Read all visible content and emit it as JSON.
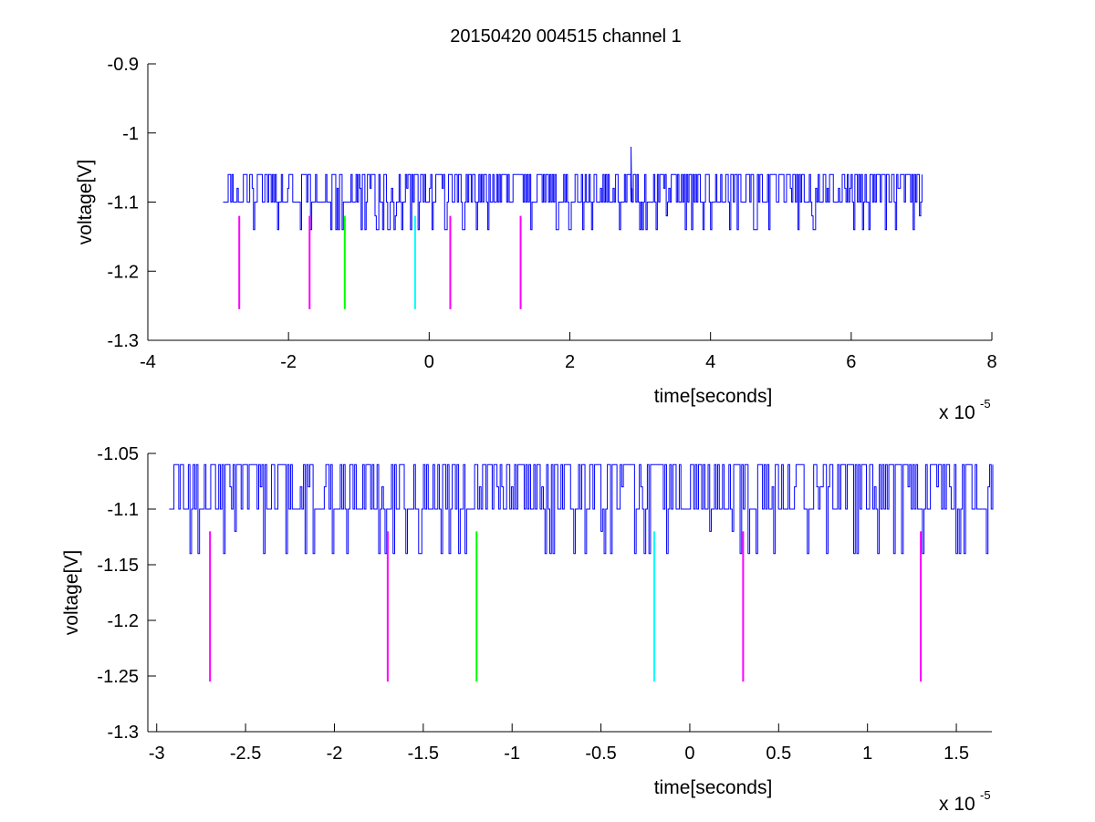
{
  "figure": {
    "title": "20150420 004515 channel 1"
  },
  "chart_data": [
    {
      "type": "line",
      "title": "20150420 004515 channel 1",
      "xlabel": "time[seconds]",
      "ylabel": "voltage[V]",
      "x_exponent_base": "x 10",
      "x_exponent_power": "-5",
      "xlim": [
        -4,
        8
      ],
      "ylim": [
        -1.3,
        -0.9
      ],
      "x_ticks": [
        -4,
        -2,
        0,
        2,
        4,
        6,
        8
      ],
      "x_tick_labels": [
        "-4",
        "-2",
        "0",
        "2",
        "4",
        "6",
        "8"
      ],
      "y_ticks": [
        -1.3,
        -1.2,
        -1.1,
        -1.0,
        -0.9
      ],
      "y_tick_labels": [
        "-1.3",
        "-1.2",
        "-1.1",
        "-1",
        "-0.9"
      ],
      "grid": false,
      "signal": {
        "color": "#0000ff",
        "x_start": -2.93,
        "x_end": 7.0,
        "baseline": -1.1,
        "high_level": -1.06,
        "low_level": -1.14,
        "spike": {
          "x": 2.87,
          "y": -1.02
        }
      },
      "markers": [
        {
          "x": -2.7,
          "y_top": -1.12,
          "y_bottom": -1.255,
          "color": "#ff00ff"
        },
        {
          "x": -1.7,
          "y_top": -1.12,
          "y_bottom": -1.255,
          "color": "#ff00ff"
        },
        {
          "x": -1.2,
          "y_top": -1.12,
          "y_bottom": -1.255,
          "color": "#00ff00"
        },
        {
          "x": -0.2,
          "y_top": -1.12,
          "y_bottom": -1.255,
          "color": "#00ffff"
        },
        {
          "x": 0.3,
          "y_top": -1.12,
          "y_bottom": -1.255,
          "color": "#ff00ff"
        },
        {
          "x": 1.3,
          "y_top": -1.12,
          "y_bottom": -1.255,
          "color": "#ff00ff"
        }
      ]
    },
    {
      "type": "line",
      "title": "",
      "xlabel": "time[seconds]",
      "ylabel": "voltage[V]",
      "x_exponent_base": "x 10",
      "x_exponent_power": "-5",
      "xlim": [
        -3.05,
        1.7
      ],
      "ylim": [
        -1.3,
        -1.05
      ],
      "x_ticks": [
        -3,
        -2.5,
        -2,
        -1.5,
        -1,
        -0.5,
        0,
        0.5,
        1,
        1.5
      ],
      "x_tick_labels": [
        "-3",
        "-2.5",
        "-2",
        "-1.5",
        "-1",
        "-0.5",
        "0",
        "0.5",
        "1",
        "1.5"
      ],
      "y_ticks": [
        -1.3,
        -1.25,
        -1.2,
        -1.15,
        -1.1,
        -1.05
      ],
      "y_tick_labels": [
        "-1.3",
        "-1.25",
        "-1.2",
        "-1.15",
        "-1.1",
        "-1.05"
      ],
      "grid": false,
      "signal": {
        "color": "#0000ff",
        "x_start": -2.93,
        "x_end": 1.7,
        "baseline": -1.1,
        "high_level": -1.06,
        "low_level": -1.14
      },
      "markers": [
        {
          "x": -2.7,
          "y_top": -1.12,
          "y_bottom": -1.255,
          "color": "#ff00ff"
        },
        {
          "x": -1.7,
          "y_top": -1.12,
          "y_bottom": -1.255,
          "color": "#ff00ff"
        },
        {
          "x": -1.2,
          "y_top": -1.12,
          "y_bottom": -1.255,
          "color": "#00ff00"
        },
        {
          "x": -0.2,
          "y_top": -1.12,
          "y_bottom": -1.255,
          "color": "#00ffff"
        },
        {
          "x": 0.3,
          "y_top": -1.12,
          "y_bottom": -1.255,
          "color": "#ff00ff"
        },
        {
          "x": 1.3,
          "y_top": -1.12,
          "y_bottom": -1.255,
          "color": "#ff00ff"
        }
      ]
    }
  ]
}
